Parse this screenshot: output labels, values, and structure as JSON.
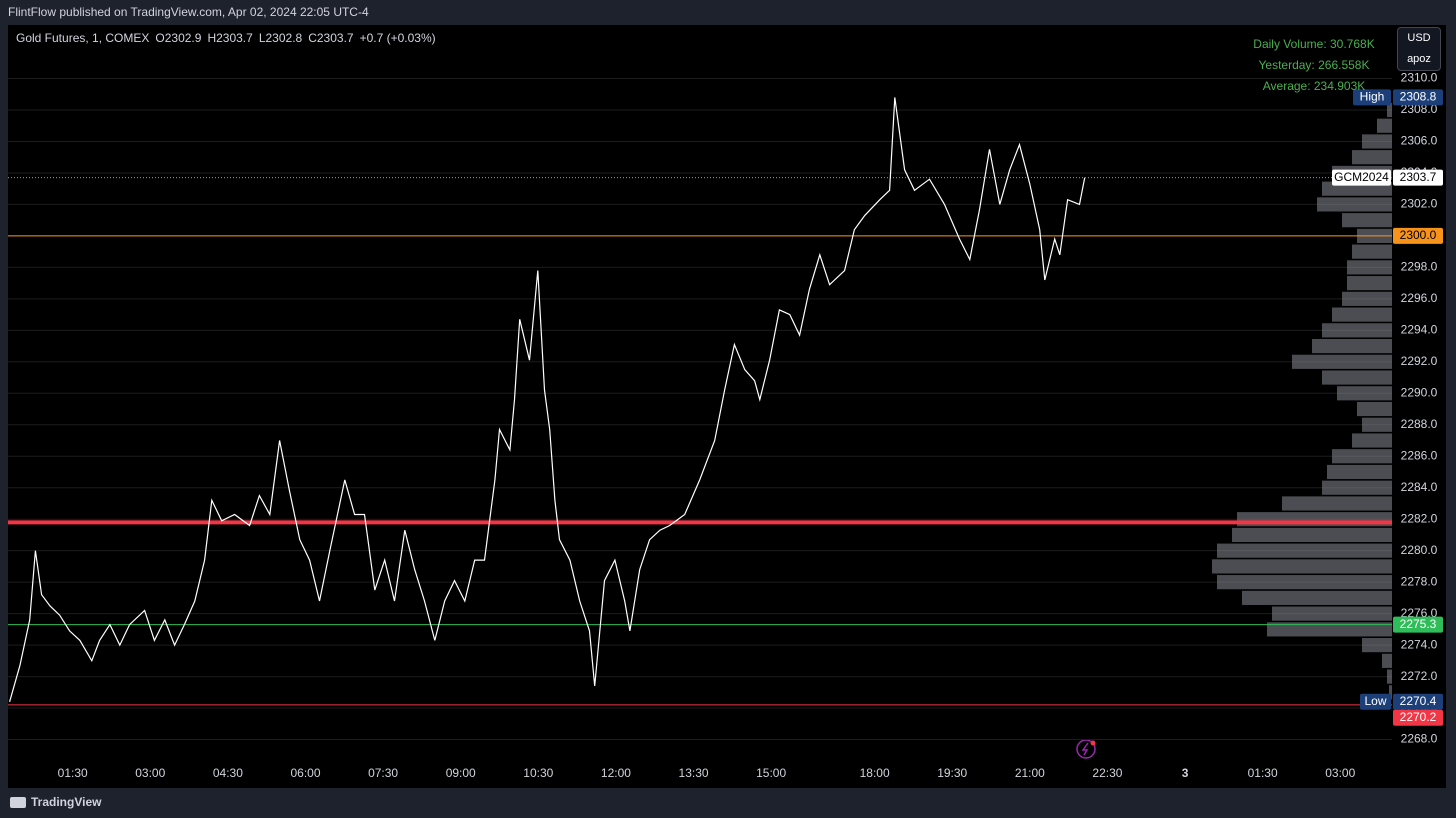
{
  "header": {
    "publish": "FlintFlow published on TradingView.com, Apr 02, 2024 22:05 UTC-4"
  },
  "footer": {
    "brand": "TradingView"
  },
  "controls": {
    "currency": "USD",
    "user": "apoz"
  },
  "indicator": {
    "lines": [
      "Daily Volume: 30.768K",
      "Yesterday: 266.558K",
      "Average: 234.903K"
    ],
    "color": "#4caf50"
  },
  "chart_data": {
    "type": "line",
    "title": "Gold Futures, 1, COMEX",
    "ohlc_labels": [
      "O",
      "H",
      "L",
      "C"
    ],
    "ohlc": [
      2302.9,
      2303.7,
      2302.8,
      2303.7
    ],
    "change": "+0.7 (+0.03%)",
    "color": "#ffffff",
    "x": [
      0.28,
      0.48,
      0.67,
      0.78,
      0.9,
      1.06,
      1.25,
      1.44,
      1.64,
      1.87,
      2.02,
      2.22,
      2.41,
      2.6,
      2.89,
      3.08,
      3.28,
      3.47,
      3.66,
      3.86,
      4.05,
      4.19,
      4.38,
      4.63,
      4.92,
      5.11,
      5.31,
      5.5,
      5.69,
      5.89,
      6.08,
      6.27,
      6.47,
      6.76,
      6.95,
      7.14,
      7.34,
      7.53,
      7.72,
      7.92,
      8.11,
      8.3,
      8.5,
      8.69,
      8.88,
      9.08,
      9.27,
      9.46,
      9.66,
      9.75,
      9.95,
      10.04,
      10.14,
      10.33,
      10.49,
      10.62,
      10.72,
      10.82,
      10.91,
      11.11,
      11.3,
      11.49,
      11.59,
      11.78,
      11.98,
      12.17,
      12.27,
      12.46,
      12.65,
      12.85,
      13.04,
      13.33,
      13.62,
      13.91,
      14.1,
      14.29,
      14.49,
      14.68,
      14.78,
      14.97,
      15.16,
      15.36,
      15.55,
      15.74,
      15.94,
      16.13,
      16.42,
      16.61,
      16.81,
      18.1,
      18.29,
      18.39,
      18.58,
      18.77,
      19.06,
      19.35,
      19.64,
      19.84,
      20.03,
      20.22,
      20.42,
      20.61,
      20.8,
      21.0,
      21.19,
      21.29,
      21.48,
      21.58,
      21.73,
      21.96,
      22.06
    ],
    "values": [
      2270.4,
      2272.7,
      2275.6,
      2280.0,
      2277.2,
      2276.5,
      2275.9,
      2274.9,
      2274.3,
      2273.0,
      2274.3,
      2275.3,
      2274.0,
      2275.3,
      2276.2,
      2274.3,
      2275.6,
      2274.0,
      2275.3,
      2276.8,
      2279.4,
      2283.2,
      2281.9,
      2282.3,
      2281.6,
      2283.5,
      2282.3,
      2287.0,
      2283.8,
      2280.7,
      2279.4,
      2276.8,
      2280.0,
      2284.5,
      2282.3,
      2282.3,
      2277.5,
      2279.4,
      2276.8,
      2281.3,
      2278.8,
      2276.8,
      2274.3,
      2276.8,
      2278.1,
      2276.8,
      2279.4,
      2279.4,
      2284.5,
      2287.7,
      2286.4,
      2289.6,
      2294.7,
      2292.1,
      2297.8,
      2290.2,
      2287.7,
      2283.2,
      2280.7,
      2279.4,
      2276.8,
      2274.9,
      2271.4,
      2278.1,
      2279.4,
      2276.8,
      2274.9,
      2278.8,
      2280.7,
      2281.3,
      2281.6,
      2282.3,
      2284.5,
      2287.0,
      2290.2,
      2293.1,
      2291.5,
      2290.8,
      2289.6,
      2292.1,
      2295.3,
      2295.0,
      2293.7,
      2296.6,
      2298.8,
      2296.9,
      2297.8,
      2300.4,
      2301.3,
      2302.3,
      2302.9,
      2308.8,
      2304.2,
      2302.9,
      2303.6,
      2302.0,
      2299.8,
      2298.5,
      2301.7,
      2305.5,
      2302.0,
      2304.2,
      2305.8,
      2303.3,
      2300.4,
      2297.2,
      2299.8,
      2298.8,
      2302.3,
      2302.0,
      2303.7
    ],
    "xlim": [
      0.25,
      28
    ],
    "session_break": [
      17,
      18
    ],
    "xticks": [
      {
        "value": 1.5,
        "label": "01:30"
      },
      {
        "value": 3,
        "label": "03:00"
      },
      {
        "value": 4.5,
        "label": "04:30"
      },
      {
        "value": 6,
        "label": "06:00"
      },
      {
        "value": 7.5,
        "label": "07:30"
      },
      {
        "value": 9,
        "label": "09:00"
      },
      {
        "value": 10.5,
        "label": "10:30"
      },
      {
        "value": 12,
        "label": "12:00"
      },
      {
        "value": 13.5,
        "label": "13:30"
      },
      {
        "value": 15,
        "label": "15:00"
      },
      {
        "value": 18,
        "label": "18:00"
      },
      {
        "value": 19.5,
        "label": "19:30"
      },
      {
        "value": 21,
        "label": "21:00"
      },
      {
        "value": 22.5,
        "label": "22:30"
      },
      {
        "value": 24,
        "label": "3"
      },
      {
        "value": 25.5,
        "label": "01:30"
      },
      {
        "value": 27,
        "label": "03:00"
      }
    ],
    "ylim": [
      2266.7,
      2313.4
    ],
    "yticks": [
      {
        "value": 2268,
        "label": "2268.0"
      },
      {
        "value": 2270,
        "label": "2270.0"
      },
      {
        "value": 2272,
        "label": "2272.0"
      },
      {
        "value": 2274,
        "label": "2274.0"
      },
      {
        "value": 2276,
        "label": "2276.0"
      },
      {
        "value": 2278,
        "label": "2278.0"
      },
      {
        "value": 2280,
        "label": "2280.0"
      },
      {
        "value": 2282,
        "label": "2282.0"
      },
      {
        "value": 2284,
        "label": "2284.0"
      },
      {
        "value": 2286,
        "label": "2286.0"
      },
      {
        "value": 2288,
        "label": "2288.0"
      },
      {
        "value": 2290,
        "label": "2290.0"
      },
      {
        "value": 2292,
        "label": "2292.0"
      },
      {
        "value": 2294,
        "label": "2294.0"
      },
      {
        "value": 2296,
        "label": "2296.0"
      },
      {
        "value": 2298,
        "label": "2298.0"
      },
      {
        "value": 2300,
        "label": "2300.0"
      },
      {
        "value": 2302,
        "label": "2302.0"
      },
      {
        "value": 2304,
        "label": "2304.0"
      },
      {
        "value": 2306,
        "label": "2306.0"
      },
      {
        "value": 2308,
        "label": "2308.0"
      },
      {
        "value": 2310,
        "label": "2310.0"
      }
    ],
    "grid": true,
    "levels": [
      {
        "name": "High",
        "value": 2308.8,
        "color": "#1c3f7a",
        "text_color": "#ffffff",
        "style": "none",
        "tag": true
      },
      {
        "name": "GCM2024",
        "value": 2303.7,
        "color": "#ffffff",
        "text_color": "#000000",
        "style": "dotted",
        "tag": true
      },
      {
        "value": 2300,
        "value_label": "2300.0",
        "color": "#f7931a",
        "text_color": "#000000",
        "style": "solid",
        "tag": true
      },
      {
        "value": 2281.8,
        "color": "#f23645",
        "style": "thick",
        "tag": false
      },
      {
        "value": 2275.3,
        "color": "#2ebd59",
        "text_color": "#ffffff",
        "style": "solid",
        "tag": true
      },
      {
        "name": "Low",
        "value": 2270.4,
        "color": "#1c3f7a",
        "text_color": "#ffffff",
        "style": "none",
        "tag": true
      },
      {
        "value": 2270.2,
        "color": "#f23645",
        "text_color": "#ffffff",
        "style": "solid",
        "tag": true
      }
    ],
    "volume_profile": {
      "color": "#8a8d96",
      "prices": [
        2308,
        2307,
        2306,
        2305,
        2304,
        2303,
        2302,
        2301,
        2300,
        2299,
        2298,
        2297,
        2296,
        2295,
        2294,
        2293,
        2292,
        2291,
        2290,
        2289,
        2288,
        2287,
        2286,
        2285,
        2284,
        2283,
        2282,
        2281,
        2280,
        2279,
        2278,
        2277,
        2276,
        2275,
        2274,
        2273,
        2272,
        2271
      ],
      "values": [
        5,
        15,
        30,
        40,
        60,
        70,
        75,
        50,
        35,
        40,
        45,
        45,
        50,
        60,
        70,
        80,
        100,
        70,
        55,
        35,
        30,
        40,
        60,
        65,
        70,
        110,
        155,
        160,
        175,
        180,
        175,
        150,
        120,
        125,
        30,
        10,
        5,
        3
      ]
    }
  }
}
